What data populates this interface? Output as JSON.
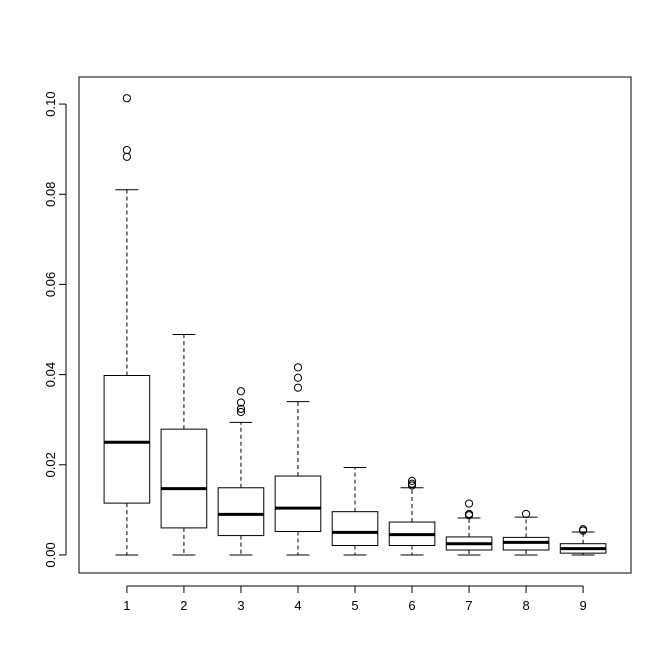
{
  "chart_data": {
    "type": "boxplot",
    "title": "",
    "xlabel": "",
    "ylabel": "",
    "ylim": [
      -0.004,
      0.106
    ],
    "y_ticks": [
      0.0,
      0.02,
      0.04,
      0.06,
      0.08,
      0.1
    ],
    "y_tick_labels": [
      "0.00",
      "0.02",
      "0.04",
      "0.06",
      "0.08",
      "0.10"
    ],
    "categories": [
      "1",
      "2",
      "3",
      "4",
      "5",
      "6",
      "7",
      "8",
      "9"
    ],
    "boxes": [
      {
        "category": "1",
        "whisker_low": 0.0,
        "q1": 0.0115,
        "median": 0.025,
        "q3": 0.0398,
        "whisker_high": 0.081,
        "outliers": [
          0.0883,
          0.0898,
          0.1013
        ]
      },
      {
        "category": "2",
        "whisker_low": 0.0,
        "q1": 0.006,
        "median": 0.0147,
        "q3": 0.0279,
        "whisker_high": 0.0489,
        "outliers": []
      },
      {
        "category": "3",
        "whisker_low": 0.0,
        "q1": 0.0043,
        "median": 0.009,
        "q3": 0.0149,
        "whisker_high": 0.0294,
        "outliers": [
          0.0317,
          0.0324,
          0.0338,
          0.0363
        ]
      },
      {
        "category": "4",
        "whisker_low": 0.0,
        "q1": 0.0052,
        "median": 0.0104,
        "q3": 0.0175,
        "whisker_high": 0.034,
        "outliers": [
          0.0371,
          0.0393,
          0.0416
        ]
      },
      {
        "category": "5",
        "whisker_low": 0.0,
        "q1": 0.0021,
        "median": 0.005,
        "q3": 0.0096,
        "whisker_high": 0.0194,
        "outliers": []
      },
      {
        "category": "6",
        "whisker_low": 0.0,
        "q1": 0.0021,
        "median": 0.0045,
        "q3": 0.0073,
        "whisker_high": 0.0149,
        "outliers": [
          0.0154,
          0.0158,
          0.0164
        ]
      },
      {
        "category": "7",
        "whisker_low": 0.0,
        "q1": 0.0011,
        "median": 0.0025,
        "q3": 0.004,
        "whisker_high": 0.0082,
        "outliers": [
          0.0088,
          0.0091,
          0.0114
        ]
      },
      {
        "category": "8",
        "whisker_low": 0.0,
        "q1": 0.0011,
        "median": 0.0028,
        "q3": 0.0039,
        "whisker_high": 0.0084,
        "outliers": [
          0.0091
        ]
      },
      {
        "category": "9",
        "whisker_low": 0.0,
        "q1": 0.0004,
        "median": 0.0014,
        "q3": 0.0025,
        "whisker_high": 0.0051,
        "outliers": [
          0.0054,
          0.0057
        ]
      }
    ],
    "grid": false,
    "legend": "none"
  }
}
